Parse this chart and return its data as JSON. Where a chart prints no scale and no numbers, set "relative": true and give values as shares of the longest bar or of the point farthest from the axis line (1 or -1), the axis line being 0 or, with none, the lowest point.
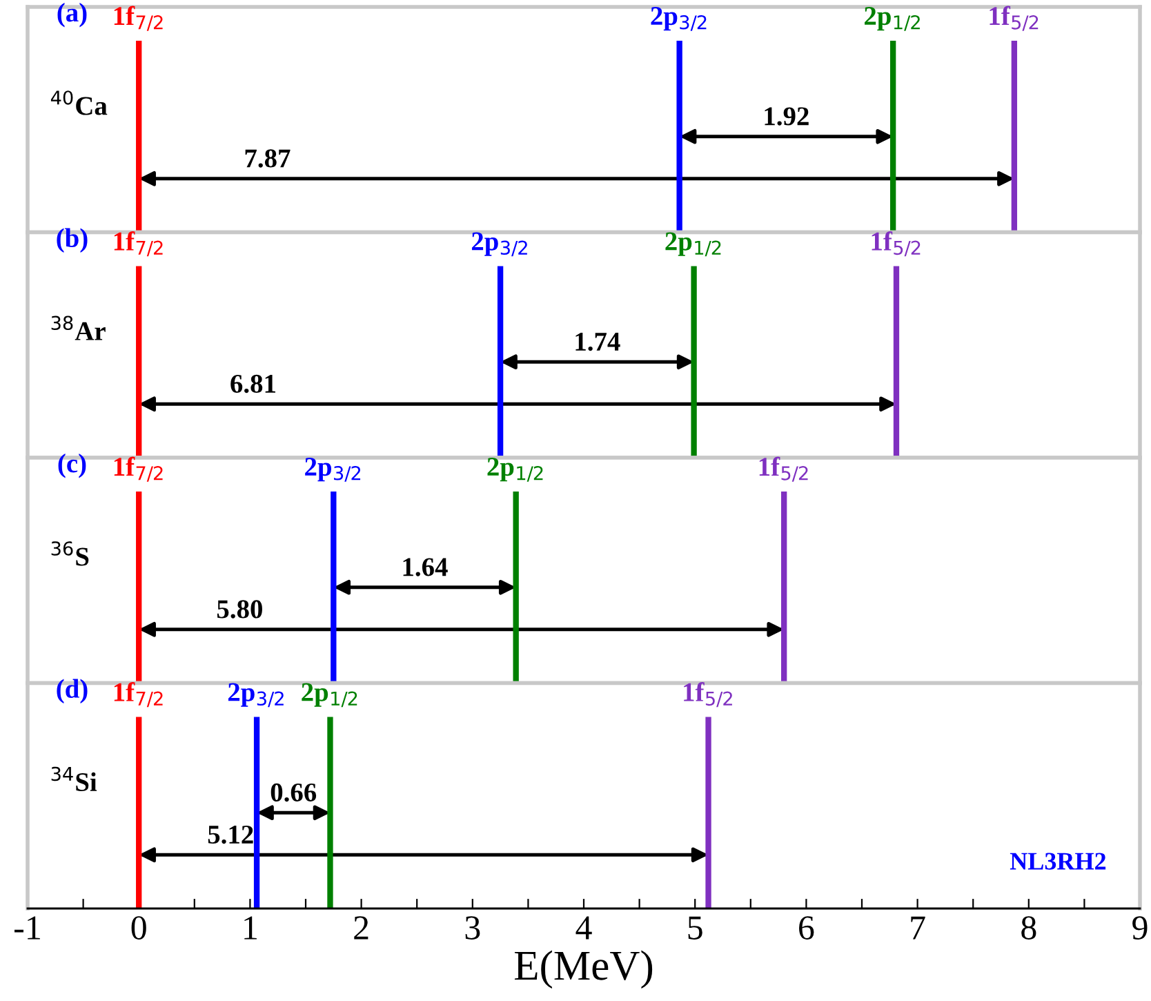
{
  "chart_data": [
    {
      "type": "line",
      "relative": true,
      "xlim": [
        -1,
        9
      ],
      "tick_labels": false,
      "annotations": [
        "(a)",
        "$^{40}$Ca",
        "7.87",
        "1.92"
      ],
      "series": [
        {
          "name": "1f$_{7/2}$",
          "color": "#ff0000",
          "x": [
            0,
            0
          ],
          "values": [
            0,
            1
          ]
        },
        {
          "name": "2p$_{3/2}$",
          "color": "#0000ff",
          "x": [
            4.86,
            4.86
          ],
          "values": [
            0,
            1
          ]
        },
        {
          "name": "2p$_{1/2}$",
          "color": "#008000",
          "x": [
            6.78,
            6.78
          ],
          "values": [
            0,
            1
          ]
        },
        {
          "name": "1f$_{5/2}$",
          "color": "#7f30c0",
          "x": [
            7.87,
            7.87
          ],
          "values": [
            0,
            1
          ]
        }
      ]
    },
    {
      "type": "line",
      "relative": true,
      "xlim": [
        -1,
        9
      ],
      "tick_labels": false,
      "annotations": [
        "(b)",
        "$^{38}$Ar",
        "6.81",
        "1.74"
      ],
      "series": [
        {
          "name": "1f$_{7/2}$",
          "color": "#ff0000",
          "x": [
            0,
            0
          ],
          "values": [
            0,
            1
          ]
        },
        {
          "name": "2p$_{3/2}$",
          "color": "#0000ff",
          "x": [
            3.25,
            3.25
          ],
          "values": [
            0,
            1
          ]
        },
        {
          "name": "2p$_{1/2}$",
          "color": "#008000",
          "x": [
            4.99,
            4.99
          ],
          "values": [
            0,
            1
          ]
        },
        {
          "name": "1f$_{5/2}$",
          "color": "#7f30c0",
          "x": [
            6.81,
            6.81
          ],
          "values": [
            0,
            1
          ]
        }
      ]
    },
    {
      "type": "line",
      "relative": true,
      "xlim": [
        -1,
        9
      ],
      "tick_labels": false,
      "annotations": [
        "(c)",
        "$^{36}$S",
        "5.80",
        "1.64"
      ],
      "series": [
        {
          "name": "1f$_{7/2}$",
          "color": "#ff0000",
          "x": [
            0,
            0
          ],
          "values": [
            0,
            1
          ]
        },
        {
          "name": "2p$_{3/2}$",
          "color": "#0000ff",
          "x": [
            1.75,
            1.75
          ],
          "values": [
            0,
            1
          ]
        },
        {
          "name": "2p$_{1/2}$",
          "color": "#008000",
          "x": [
            3.39,
            3.39
          ],
          "values": [
            0,
            1
          ]
        },
        {
          "name": "1f$_{5/2}$",
          "color": "#7f30c0",
          "x": [
            5.8,
            5.8
          ],
          "values": [
            0,
            1
          ]
        }
      ]
    },
    {
      "type": "line",
      "relative": true,
      "xlim": [
        -1,
        9
      ],
      "tick_labels": "x",
      "xlabel": "E(MeV)",
      "annotations": [
        "(d)",
        "$^{34}$Si",
        "5.12",
        "0.66",
        "NL3RH2"
      ],
      "xticks": [
        -1,
        {
          "value": -0.5,
          "label": null
        },
        0,
        {
          "value": 0.5,
          "label": null
        },
        1,
        {
          "value": 1.5,
          "label": null
        },
        2,
        {
          "value": 2.5,
          "label": null
        },
        3,
        {
          "value": 3.5,
          "label": null
        },
        4,
        {
          "value": 4.5,
          "label": null
        },
        5,
        {
          "value": 5.5,
          "label": null
        },
        6,
        {
          "value": 6.5,
          "label": null
        },
        7,
        {
          "value": 7.5,
          "label": null
        },
        8,
        {
          "value": 8.5,
          "label": null
        },
        9
      ],
      "series": [
        {
          "name": "1f$_{7/2}$",
          "color": "#ff0000",
          "x": [
            0,
            0
          ],
          "values": [
            0,
            1
          ]
        },
        {
          "name": "2p$_{3/2}$",
          "color": "#0000ff",
          "x": [
            1.06,
            1.06
          ],
          "values": [
            0,
            1
          ]
        },
        {
          "name": "2p$_{1/2}$",
          "color": "#008000",
          "x": [
            1.72,
            1.72
          ],
          "values": [
            0,
            1
          ]
        },
        {
          "name": "1f$_{5/2}$",
          "color": "#7f30c0",
          "x": [
            5.12,
            5.12
          ],
          "values": [
            0,
            1
          ]
        }
      ]
    }
  ]
}
